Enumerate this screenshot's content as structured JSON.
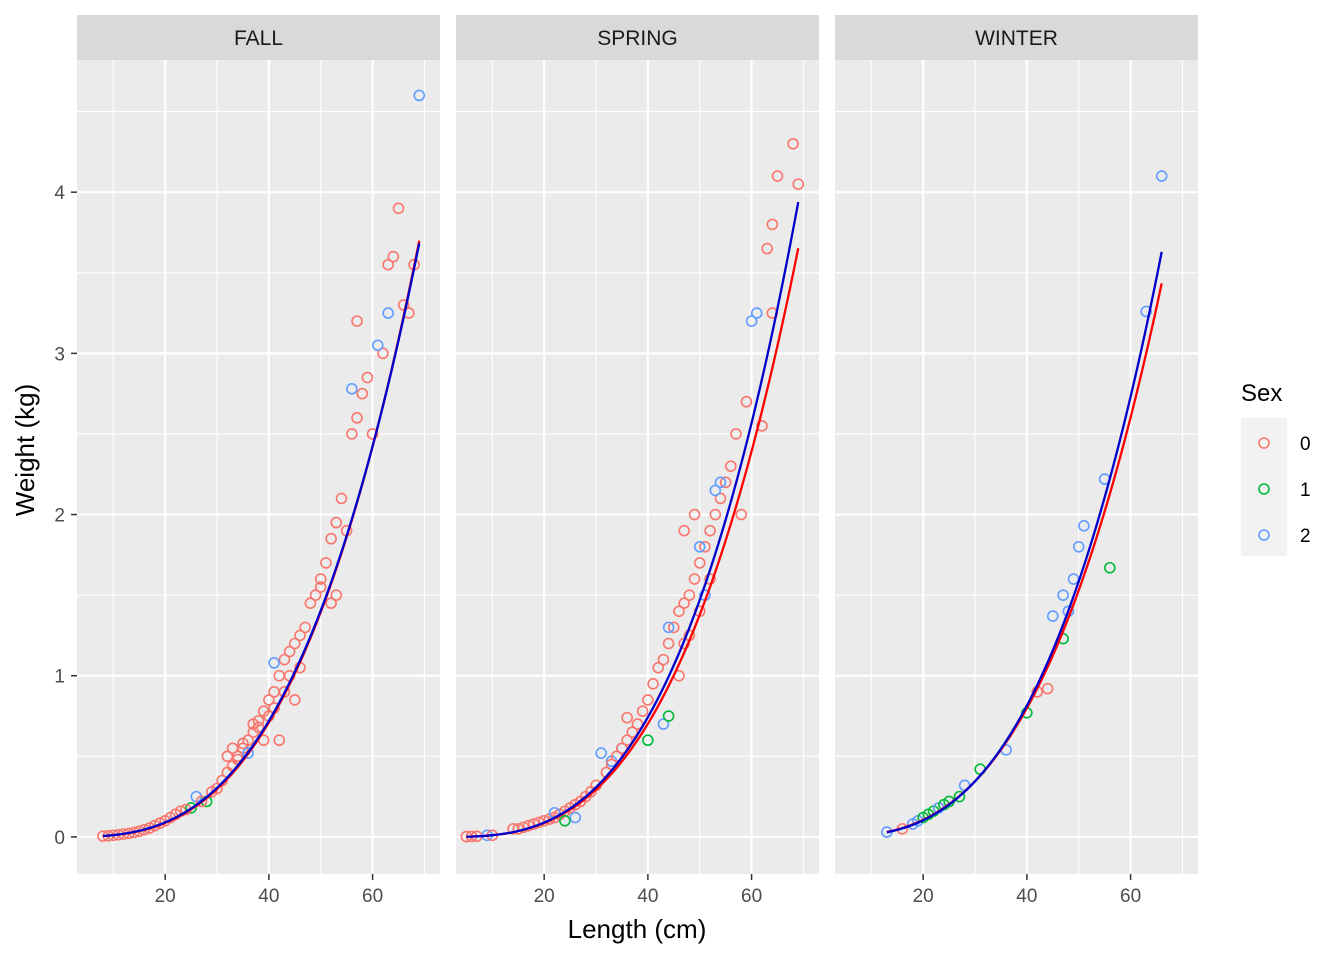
{
  "chart_data": {
    "type": "scatter",
    "xlabel": "Length (cm)",
    "ylabel": "Weight (kg)",
    "xlim": [
      3,
      73
    ],
    "ylim": [
      -0.23,
      4.82
    ],
    "x_ticks": [
      20,
      40,
      60
    ],
    "y_ticks": [
      0,
      1,
      2,
      3,
      4
    ],
    "grid": true,
    "legend": {
      "title": "Sex",
      "placement": "right",
      "entries": [
        {
          "label": "0",
          "color": "#F8766D"
        },
        {
          "label": "1",
          "color": "#00BA38"
        },
        {
          "label": "2",
          "color": "#619CFF"
        }
      ]
    },
    "colors": {
      "sex0": "#F8766D",
      "sex1": "#00BA38",
      "sex2": "#619CFF",
      "fit_red": "#FF0000",
      "fit_blue": "#0000CD",
      "panel_bg": "#EBEBEB",
      "strip_bg": "#D9D9D9"
    },
    "panels": [
      {
        "strip": "FALL",
        "fit_red": {
          "a": 1e-05,
          "b": 3.028,
          "x": [
            8,
            69
          ]
        },
        "fit_blue": {
          "a": 1.15e-05,
          "b": 2.994,
          "x": [
            8,
            69
          ]
        },
        "points": [
          [
            8,
            0.005,
            0
          ],
          [
            9,
            0.007,
            0
          ],
          [
            10,
            0.01,
            0
          ],
          [
            11,
            0.013,
            0
          ],
          [
            12,
            0.018,
            0
          ],
          [
            13,
            0.022,
            0
          ],
          [
            14,
            0.028,
            0
          ],
          [
            15,
            0.035,
            0
          ],
          [
            16,
            0.045,
            0
          ],
          [
            17,
            0.055,
            0
          ],
          [
            18,
            0.07,
            0
          ],
          [
            19,
            0.085,
            0
          ],
          [
            20,
            0.1,
            0
          ],
          [
            21,
            0.12,
            0
          ],
          [
            22,
            0.14,
            0
          ],
          [
            23,
            0.16,
            0
          ],
          [
            25,
            0.18,
            1
          ],
          [
            28,
            0.22,
            1
          ],
          [
            26,
            0.25,
            2
          ],
          [
            24,
            0.17,
            0
          ],
          [
            27,
            0.22,
            0
          ],
          [
            29,
            0.28,
            0
          ],
          [
            30,
            0.3,
            0
          ],
          [
            31,
            0.35,
            0
          ],
          [
            32,
            0.4,
            0
          ],
          [
            33,
            0.44,
            0
          ],
          [
            34,
            0.5,
            0
          ],
          [
            35,
            0.55,
            0
          ],
          [
            36,
            0.6,
            0
          ],
          [
            37,
            0.65,
            0
          ],
          [
            38,
            0.72,
            0
          ],
          [
            39,
            0.78,
            0
          ],
          [
            40,
            0.85,
            0
          ],
          [
            41,
            0.9,
            0
          ],
          [
            42,
            1.0,
            0
          ],
          [
            43,
            1.1,
            0
          ],
          [
            44,
            1.15,
            0
          ],
          [
            45,
            1.2,
            0
          ],
          [
            46,
            1.25,
            0
          ],
          [
            47,
            1.3,
            0
          ],
          [
            32,
            0.5,
            0
          ],
          [
            33,
            0.55,
            0
          ],
          [
            34,
            0.48,
            0
          ],
          [
            35,
            0.58,
            0
          ],
          [
            36,
            0.52,
            2
          ],
          [
            37,
            0.7,
            0
          ],
          [
            38,
            0.68,
            0
          ],
          [
            39,
            0.6,
            0
          ],
          [
            40,
            0.75,
            0
          ],
          [
            41,
            0.8,
            0
          ],
          [
            42,
            0.6,
            0
          ],
          [
            43,
            0.9,
            0
          ],
          [
            44,
            1.0,
            0
          ],
          [
            45,
            0.85,
            0
          ],
          [
            46,
            1.05,
            0
          ],
          [
            41,
            1.08,
            2
          ],
          [
            48,
            1.45,
            0
          ],
          [
            49,
            1.5,
            0
          ],
          [
            50,
            1.6,
            0
          ],
          [
            51,
            1.7,
            0
          ],
          [
            52,
            1.85,
            0
          ],
          [
            53,
            1.95,
            0
          ],
          [
            54,
            2.1,
            0
          ],
          [
            55,
            1.9,
            0
          ],
          [
            50,
            1.55,
            0
          ],
          [
            52,
            1.45,
            0
          ],
          [
            53,
            1.5,
            0
          ],
          [
            56,
            2.5,
            0
          ],
          [
            57,
            2.6,
            0
          ],
          [
            58,
            2.75,
            0
          ],
          [
            59,
            2.85,
            0
          ],
          [
            60,
            2.5,
            0
          ],
          [
            57,
            3.2,
            0
          ],
          [
            62,
            3.0,
            0
          ],
          [
            63,
            3.55,
            0
          ],
          [
            64,
            3.6,
            0
          ],
          [
            65,
            3.9,
            0
          ],
          [
            66,
            3.3,
            0
          ],
          [
            67,
            3.25,
            0
          ],
          [
            68,
            3.55,
            0
          ],
          [
            56,
            2.78,
            2
          ],
          [
            61,
            3.05,
            2
          ],
          [
            63,
            3.25,
            2
          ],
          [
            69,
            4.6,
            2
          ]
        ]
      },
      {
        "strip": "SPRING",
        "fit_red": {
          "a": 1e-05,
          "b": 3.025,
          "x": [
            5,
            69
          ]
        },
        "fit_blue": {
          "a": 9.3e-06,
          "b": 3.06,
          "x": [
            5,
            69
          ]
        },
        "points": [
          [
            5,
            0.002,
            0
          ],
          [
            6,
            0.003,
            0
          ],
          [
            7,
            0.004,
            0
          ],
          [
            9,
            0.01,
            2
          ],
          [
            10,
            0.01,
            0
          ],
          [
            14,
            0.05,
            0
          ],
          [
            15,
            0.05,
            0
          ],
          [
            16,
            0.06,
            0
          ],
          [
            17,
            0.07,
            0
          ],
          [
            18,
            0.08,
            0
          ],
          [
            19,
            0.09,
            0
          ],
          [
            20,
            0.1,
            0
          ],
          [
            21,
            0.11,
            0
          ],
          [
            22,
            0.12,
            0
          ],
          [
            23,
            0.14,
            0
          ],
          [
            24,
            0.16,
            0
          ],
          [
            25,
            0.18,
            0
          ],
          [
            26,
            0.2,
            0
          ],
          [
            27,
            0.22,
            0
          ],
          [
            28,
            0.25,
            0
          ],
          [
            29,
            0.28,
            0
          ],
          [
            30,
            0.32,
            0
          ],
          [
            22,
            0.15,
            2
          ],
          [
            26,
            0.12,
            2
          ],
          [
            24,
            0.1,
            1
          ],
          [
            31,
            0.52,
            2
          ],
          [
            33,
            0.47,
            2
          ],
          [
            35,
            0.55,
            2
          ],
          [
            32,
            0.4,
            0
          ],
          [
            33,
            0.45,
            0
          ],
          [
            34,
            0.5,
            0
          ],
          [
            35,
            0.55,
            0
          ],
          [
            36,
            0.6,
            0
          ],
          [
            37,
            0.65,
            0
          ],
          [
            38,
            0.7,
            0
          ],
          [
            39,
            0.78,
            0
          ],
          [
            40,
            0.85,
            0
          ],
          [
            41,
            0.95,
            0
          ],
          [
            42,
            1.05,
            0
          ],
          [
            43,
            1.1,
            0
          ],
          [
            44,
            1.2,
            0
          ],
          [
            45,
            1.3,
            0
          ],
          [
            46,
            1.4,
            0
          ],
          [
            47,
            1.45,
            0
          ],
          [
            48,
            1.5,
            0
          ],
          [
            49,
            1.6,
            0
          ],
          [
            36,
            0.74,
            0
          ],
          [
            40,
            0.6,
            1
          ],
          [
            43,
            0.7,
            2
          ],
          [
            44,
            0.75,
            1
          ],
          [
            44,
            1.3,
            2
          ],
          [
            46,
            1.0,
            0
          ],
          [
            47,
            1.2,
            0
          ],
          [
            48,
            1.25,
            0
          ],
          [
            50,
            1.4,
            0
          ],
          [
            50,
            1.7,
            0
          ],
          [
            51,
            1.8,
            0
          ],
          [
            52,
            1.9,
            0
          ],
          [
            53,
            2.0,
            0
          ],
          [
            54,
            2.1,
            0
          ],
          [
            55,
            2.2,
            0
          ],
          [
            56,
            2.3,
            0
          ],
          [
            57,
            2.5,
            0
          ],
          [
            58,
            2.0,
            0
          ],
          [
            47,
            1.9,
            0
          ],
          [
            49,
            2.0,
            0
          ],
          [
            53,
            2.15,
            2
          ],
          [
            54,
            2.2,
            2
          ],
          [
            51,
            1.5,
            2
          ],
          [
            52,
            1.6,
            0
          ],
          [
            50,
            1.8,
            2
          ],
          [
            59,
            2.7,
            0
          ],
          [
            60,
            3.2,
            2
          ],
          [
            61,
            3.25,
            2
          ],
          [
            62,
            2.55,
            0
          ],
          [
            63,
            3.65,
            0
          ],
          [
            64,
            3.8,
            0
          ],
          [
            64,
            3.25,
            0
          ],
          [
            65,
            4.1,
            0
          ],
          [
            68,
            4.3,
            0
          ],
          [
            69,
            4.05,
            0
          ]
        ]
      },
      {
        "strip": "WINTER",
        "fit_red": {
          "a": 1.72e-05,
          "b": 2.913,
          "x": [
            13,
            66
          ]
        },
        "fit_blue": {
          "a": 1.35e-05,
          "b": 2.984,
          "x": [
            13,
            66
          ]
        },
        "points": [
          [
            13,
            0.03,
            2
          ],
          [
            16,
            0.05,
            0
          ],
          [
            18,
            0.08,
            2
          ],
          [
            19,
            0.1,
            2
          ],
          [
            20,
            0.12,
            1
          ],
          [
            21,
            0.14,
            1
          ],
          [
            22,
            0.16,
            1
          ],
          [
            23,
            0.18,
            2
          ],
          [
            24,
            0.2,
            1
          ],
          [
            25,
            0.22,
            1
          ],
          [
            27,
            0.25,
            1
          ],
          [
            28,
            0.32,
            2
          ],
          [
            31,
            0.42,
            1
          ],
          [
            36,
            0.54,
            2
          ],
          [
            40,
            0.77,
            1
          ],
          [
            42,
            0.9,
            0
          ],
          [
            44,
            0.92,
            0
          ],
          [
            45,
            1.37,
            2
          ],
          [
            47,
            1.5,
            2
          ],
          [
            47,
            1.23,
            1
          ],
          [
            48,
            1.4,
            2
          ],
          [
            49,
            1.6,
            2
          ],
          [
            50,
            1.8,
            2
          ],
          [
            51,
            1.93,
            2
          ],
          [
            55,
            2.22,
            2
          ],
          [
            56,
            1.67,
            1
          ],
          [
            63,
            3.26,
            2
          ],
          [
            66,
            4.1,
            2
          ]
        ]
      }
    ]
  }
}
